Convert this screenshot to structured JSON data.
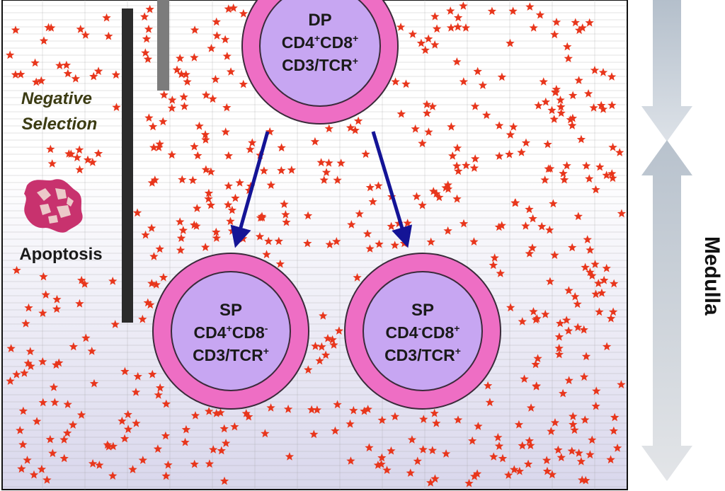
{
  "labels": {
    "negative_selection_line1": "Negative",
    "negative_selection_line2": "Selection",
    "apoptosis": "Apoptosis",
    "zone": "Medulla"
  },
  "cells": {
    "dp": {
      "line1": "DP",
      "line2_a": "CD4",
      "line2_a_sup": "+",
      "line2_b": "CD8",
      "line2_b_sup": "+",
      "line3_a": "CD3/TCR",
      "line3_a_sup": "+"
    },
    "sp_cd4": {
      "line1": "SP",
      "line2_a": "CD4",
      "line2_a_sup": "+",
      "line2_b": "CD8",
      "line2_b_sup": "-",
      "line3_a": "CD3/TCR",
      "line3_a_sup": "+"
    },
    "sp_cd8": {
      "line1": "SP",
      "line2_a": "CD4",
      "line2_a_sup": "-",
      "line2_b": "CD8",
      "line2_b_sup": "+",
      "line3_a": "CD3/TCR",
      "line3_a_sup": "+"
    }
  },
  "colors": {
    "background_top": "#ffffff",
    "background_bottom": "#d9d7ec",
    "grid_line": "#9a9a9a",
    "star": "#e8361c",
    "cell_outer": "#ee6ec4",
    "cell_inner": "#c7a6f2",
    "cell_stroke": "#3a2a3a",
    "arrow": "#141496",
    "dark_bar": "#2b2b2b",
    "grey_bar": "#7c7c7c",
    "apoptosis_body": "#c8326e",
    "apoptosis_fragment": "#ecc9c9",
    "zone_arrow": "#c4ccd6"
  }
}
